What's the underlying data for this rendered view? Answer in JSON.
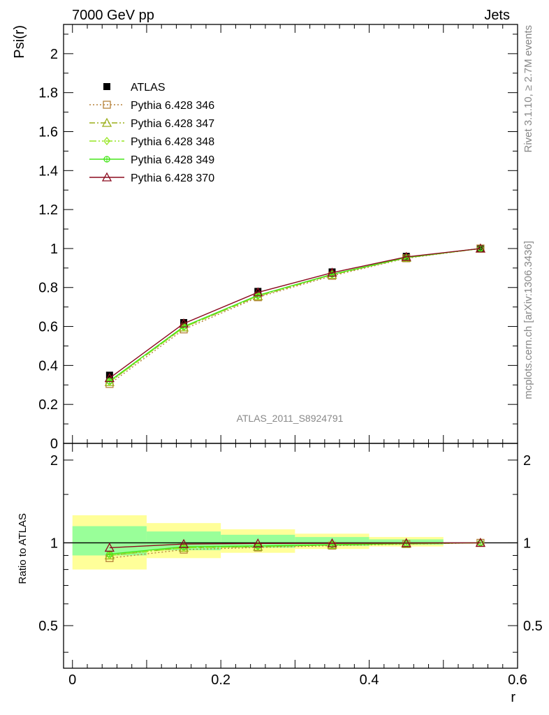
{
  "header": {
    "left": "7000 GeV pp",
    "right": "Jets"
  },
  "side_labels": {
    "rivet": "Rivet 3.1.10, ≥ 2.7M events",
    "mcplots": "mcplots.cern.ch [arXiv:1306.3436]"
  },
  "analysis_label": "ATLAS_2011_S8924791",
  "chart_data": [
    {
      "type": "line",
      "ylabel": "Psi(r)",
      "ylim": [
        0,
        2.15
      ],
      "xlim": [
        -0.012,
        0.6
      ],
      "y_ticks": [
        "0",
        "0.2",
        "0.4",
        "0.6",
        "0.8",
        "1",
        "1.2",
        "1.4",
        "1.6",
        "1.8",
        "2"
      ],
      "legend_position": "top-left",
      "x": [
        0.05,
        0.15,
        0.25,
        0.35,
        0.45,
        0.55
      ],
      "series": [
        {
          "name": "ATLAS",
          "color": "#000000",
          "marker": "square-filled",
          "values": [
            0.35,
            0.62,
            0.78,
            0.88,
            0.96,
            1.0
          ]
        },
        {
          "name": "Pythia 6.428 346",
          "color": "#b5823a",
          "marker": "square-open",
          "line": "dotted",
          "values": [
            0.305,
            0.585,
            0.75,
            0.86,
            0.95,
            1.0
          ]
        },
        {
          "name": "Pythia 6.428 347",
          "color": "#9aae19",
          "marker": "triangle-open",
          "line": "dashdot",
          "values": [
            0.315,
            0.595,
            0.755,
            0.865,
            0.952,
            1.0
          ]
        },
        {
          "name": "Pythia 6.428 348",
          "color": "#96e620",
          "marker": "diamond-open",
          "line": "dashdot2",
          "values": [
            0.315,
            0.595,
            0.757,
            0.866,
            0.953,
            1.0
          ]
        },
        {
          "name": "Pythia 6.428 349",
          "color": "#46e61a",
          "marker": "cross-circle",
          "line": "solid",
          "values": [
            0.32,
            0.6,
            0.76,
            0.868,
            0.954,
            1.0
          ]
        },
        {
          "name": "Pythia 6.428 370",
          "color": "#8b0a1e",
          "marker": "triangle-open",
          "line": "solid",
          "values": [
            0.335,
            0.615,
            0.775,
            0.876,
            0.957,
            1.0
          ]
        }
      ]
    },
    {
      "type": "line",
      "xlabel": "r",
      "ylabel": "Ratio to ATLAS",
      "ylim": [
        0.35,
        2.3
      ],
      "xlim": [
        -0.012,
        0.6
      ],
      "y_ticks": [
        "0.5",
        "1",
        "2"
      ],
      "x_ticks": [
        "0",
        "0.2",
        "0.4",
        "0.6"
      ],
      "bands": {
        "bin_edges": [
          0.0,
          0.1,
          0.2,
          0.3,
          0.4,
          0.5
        ],
        "yellow": [
          [
            0.8,
            1.26
          ],
          [
            0.88,
            1.18
          ],
          [
            0.92,
            1.12
          ],
          [
            0.95,
            1.08
          ],
          [
            0.97,
            1.05
          ]
        ],
        "green": [
          [
            0.9,
            1.15
          ],
          [
            0.94,
            1.1
          ],
          [
            0.96,
            1.07
          ],
          [
            0.975,
            1.05
          ],
          [
            0.985,
            1.03
          ]
        ]
      },
      "x": [
        0.05,
        0.15,
        0.25,
        0.35,
        0.45,
        0.55
      ],
      "series": [
        {
          "name": "Pythia 6.428 346",
          "color": "#b5823a",
          "marker": "square-open",
          "line": "dotted",
          "values": [
            0.88,
            0.945,
            0.962,
            0.977,
            0.99,
            1.0
          ]
        },
        {
          "name": "Pythia 6.428 347",
          "color": "#9aae19",
          "marker": "triangle-open",
          "line": "dashdot",
          "values": [
            0.9,
            0.96,
            0.968,
            0.982,
            0.992,
            1.0
          ]
        },
        {
          "name": "Pythia 6.428 348",
          "color": "#96e620",
          "marker": "diamond-open",
          "line": "dashdot2",
          "values": [
            0.9,
            0.96,
            0.97,
            0.983,
            0.993,
            1.0
          ]
        },
        {
          "name": "Pythia 6.428 349",
          "color": "#46e61a",
          "marker": "cross-circle",
          "line": "solid",
          "values": [
            0.91,
            0.968,
            0.974,
            0.985,
            0.994,
            1.0
          ]
        },
        {
          "name": "Pythia 6.428 370",
          "color": "#8b0a1e",
          "marker": "triangle-open",
          "line": "solid",
          "values": [
            0.96,
            0.99,
            0.995,
            0.996,
            0.998,
            1.0
          ]
        }
      ]
    }
  ]
}
